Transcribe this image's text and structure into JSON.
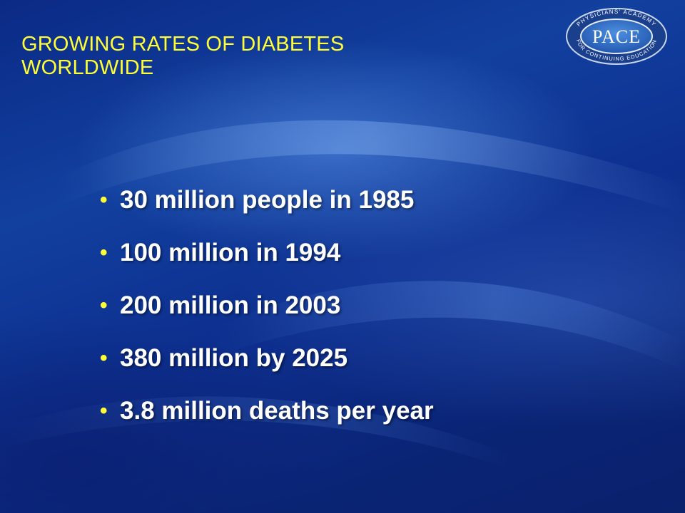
{
  "slide": {
    "title_line1": "GROWING RATES OF DIABETES",
    "title_line2": "WORLDWIDE",
    "bullets": [
      "30 million people in 1985",
      "100 million in 1994",
      "200 million in 2003",
      "380 million by 2025",
      "3.8 million deaths per year"
    ],
    "bullet_glyph": "•"
  },
  "logo": {
    "main_text": "PACE",
    "top_arc_text": "PHYSICIANS' ACADEMY",
    "bottom_arc_text": "FOR CONTINUING EDUCATION"
  },
  "colors": {
    "title": "#ffff33",
    "bullet": "#ffff33",
    "text": "#ffffff",
    "background": "#0d2f8f"
  }
}
